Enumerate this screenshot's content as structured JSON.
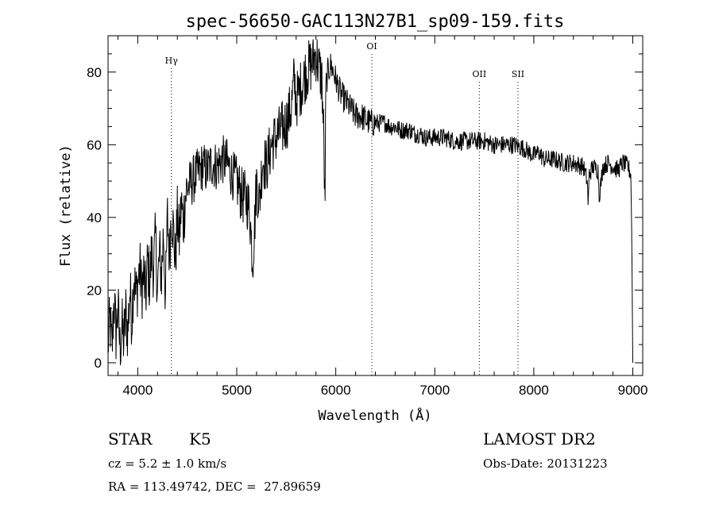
{
  "chart_data": {
    "type": "line",
    "title": "spec-56650-GAC113N27B1_sp09-159.fits",
    "xlabel": "Wavelength (Å)",
    "ylabel": "Flux (relative)",
    "xlim": [
      3700,
      9100
    ],
    "ylim": [
      -3.5,
      90
    ],
    "xticks": [
      4000,
      5000,
      6000,
      7000,
      8000,
      9000
    ],
    "yticks": [
      0,
      20,
      40,
      60,
      80
    ],
    "grid": false,
    "line_color": "#000000",
    "lines": [
      {
        "label": "Hγ",
        "wavelength": 4340
      },
      {
        "label": "OI",
        "wavelength": 6364
      },
      {
        "label": "OII",
        "wavelength": 7450
      },
      {
        "label": "SII",
        "wavelength": 7840
      }
    ],
    "series": [
      {
        "x": [
          3700,
          3720,
          3740,
          3760,
          3780,
          3800,
          3820,
          3840,
          3860,
          3880,
          3900,
          3920,
          3940,
          3960,
          3980,
          4000,
          4020,
          4040,
          4060,
          4080,
          4100,
          4120,
          4140,
          4160,
          4180,
          4200,
          4220,
          4240,
          4260,
          4280,
          4300,
          4320,
          4340,
          4360,
          4380,
          4400,
          4420,
          4440,
          4460,
          4480,
          4500,
          4550,
          4600,
          4650,
          4700,
          4750,
          4800,
          4850,
          4900,
          4950,
          5000,
          5050,
          5100,
          5130,
          5160,
          5180,
          5200,
          5230,
          5260,
          5300,
          5350,
          5400,
          5450,
          5500,
          5550,
          5580,
          5600,
          5650,
          5700,
          5750,
          5800,
          5840,
          5860,
          5880,
          5890,
          5900,
          5920,
          5950,
          6000,
          6050,
          6100,
          6150,
          6200,
          6250,
          6300,
          6350,
          6400,
          6450,
          6500,
          6550,
          6600,
          6650,
          6700,
          6750,
          6800,
          6850,
          6900,
          6950,
          7000,
          7100,
          7200,
          7300,
          7400,
          7500,
          7600,
          7700,
          7800,
          7900,
          7950,
          8000,
          8050,
          8100,
          8200,
          8300,
          8400,
          8500,
          8540,
          8550,
          8560,
          8600,
          8650,
          8660,
          8700,
          8750,
          8800,
          8850,
          8900,
          8950,
          8980,
          8990,
          9000
        ],
        "y": [
          5,
          12,
          3,
          18,
          8,
          15,
          4,
          10,
          6,
          14,
          8,
          20,
          12,
          25,
          18,
          22,
          26,
          20,
          24,
          18,
          28,
          22,
          30,
          26,
          34,
          20,
          30,
          24,
          36,
          18,
          40,
          30,
          42,
          36,
          28,
          40,
          34,
          44,
          38,
          46,
          48,
          50,
          52,
          54,
          53,
          55,
          54,
          56,
          55,
          52,
          50,
          46,
          45,
          42,
          28,
          38,
          50,
          44,
          56,
          54,
          60,
          62,
          64,
          66,
          70,
          78,
          72,
          76,
          80,
          82,
          85,
          80,
          78,
          60,
          41,
          76,
          80,
          82,
          78,
          74,
          72,
          70,
          68,
          68,
          67,
          66,
          66,
          66,
          66,
          65,
          65,
          64,
          64,
          64,
          63,
          63,
          62,
          62,
          62,
          62,
          61,
          61,
          61,
          61,
          60,
          60,
          60,
          59,
          58,
          57,
          58,
          56,
          56,
          55,
          55,
          54,
          50,
          43,
          52,
          54,
          53,
          46,
          54,
          55,
          54,
          53,
          55,
          54,
          52,
          35,
          0
        ]
      }
    ]
  },
  "info": {
    "object_class": "STAR",
    "subclass": "K5",
    "redshift": "cz = 5.2 ± 1.0 km/s",
    "coords": "RA = 113.49742, DEC =  27.89659",
    "survey": "LAMOST DR2",
    "obs_date": "Obs-Date: 20131223"
  }
}
